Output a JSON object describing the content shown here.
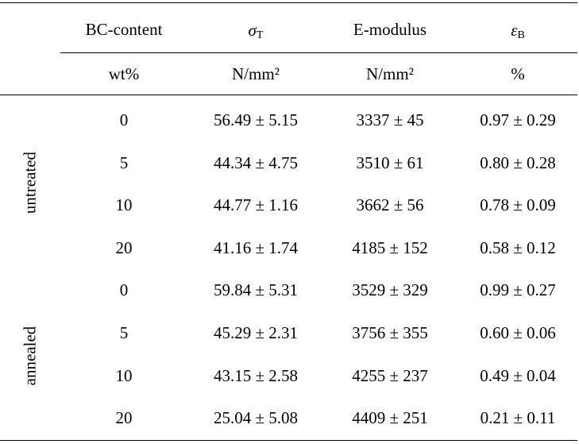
{
  "header": {
    "row1": {
      "col1": "BC-content",
      "col2_symbol": "σ",
      "col2_sub": "T",
      "col3": "E-modulus",
      "col4_symbol": "ε",
      "col4_sub": "B"
    },
    "row2": {
      "col1": "wt%",
      "col2": "N/mm²",
      "col3": "N/mm²",
      "col4": "%"
    }
  },
  "groups": [
    "untreated",
    "annealed"
  ],
  "rows": [
    {
      "bc": "0",
      "sigma": "56.49 ± 5.15",
      "emod": "3337 ± 45",
      "eps": "0.97 ± 0.29"
    },
    {
      "bc": "5",
      "sigma": "44.34 ± 4.75",
      "emod": "3510 ± 61",
      "eps": "0.80 ± 0.28"
    },
    {
      "bc": "10",
      "sigma": "44.77 ± 1.16",
      "emod": "3662 ± 56",
      "eps": "0.78 ± 0.09"
    },
    {
      "bc": "20",
      "sigma": "41.16 ± 1.74",
      "emod": "4185 ± 152",
      "eps": "0.58 ± 0.12"
    },
    {
      "bc": "0",
      "sigma": "59.84 ± 5.31",
      "emod": "3529 ± 329",
      "eps": "0.99 ± 0.27"
    },
    {
      "bc": "5",
      "sigma": "45.29 ± 2.31",
      "emod": "3756 ± 355",
      "eps": "0.60 ± 0.06"
    },
    {
      "bc": "10",
      "sigma": "43.15 ± 2.58",
      "emod": "4255 ± 237",
      "eps": "0.49 ± 0.04"
    },
    {
      "bc": "20",
      "sigma": "25.04 ± 5.08",
      "emod": "4409 ± 251",
      "eps": "0.21 ± 0.11"
    }
  ]
}
